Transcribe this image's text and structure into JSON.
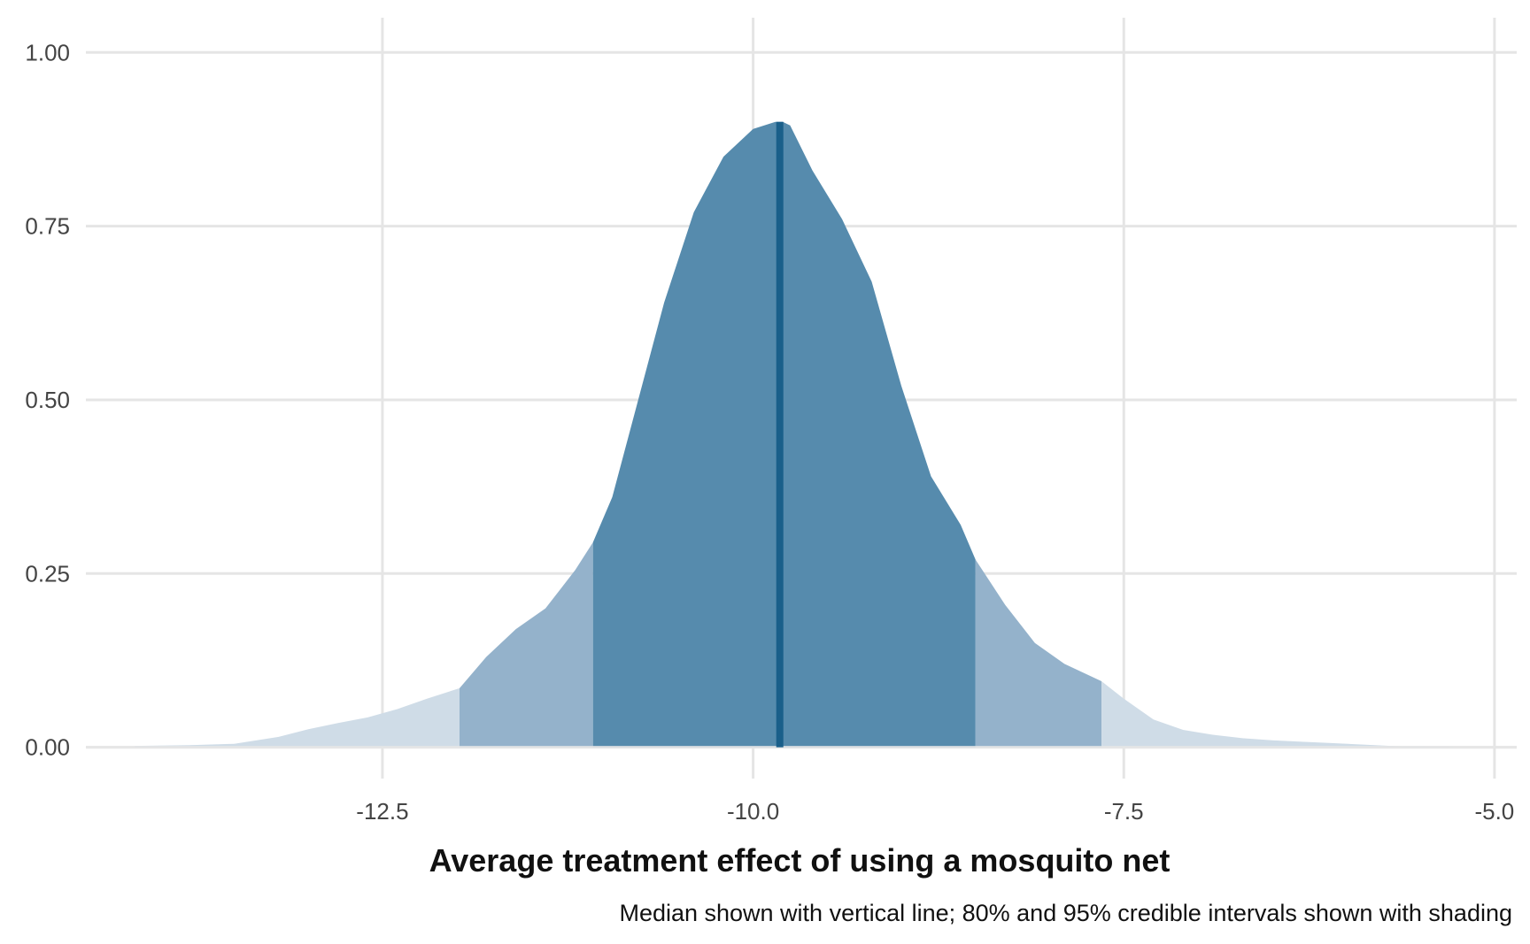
{
  "chart_data": {
    "type": "area",
    "xlabel": "Average treatment effect of using a mosquito net",
    "ylabel": "",
    "caption": "Median shown with vertical line; 80% and 95% credible intervals shown with shading",
    "xlim": [
      -14.5,
      -4.85
    ],
    "ylim": [
      -0.045,
      1.05
    ],
    "grid": true,
    "legend": "none",
    "x_ticks": [
      -12.5,
      -10.0,
      -7.5,
      -5.0
    ],
    "x_tick_labels": [
      "-12.5",
      "-10.0",
      "-7.5",
      "-5.0"
    ],
    "y_ticks": [
      0.0,
      0.25,
      0.5,
      0.75,
      1.0
    ],
    "y_tick_labels": [
      "0.00",
      "0.25",
      "0.50",
      "0.75",
      "1.00"
    ],
    "median": -9.82,
    "interval_80": [
      -11.08,
      -8.5
    ],
    "interval_95": [
      -11.98,
      -7.65
    ],
    "colors": {
      "outer": "#cfdce7",
      "ci95": "#94b2cb",
      "ci80": "#568bad",
      "median": "#1a5f8a",
      "grid": "#e5e5e5"
    },
    "density": {
      "x": [
        -14.17,
        -13.8,
        -13.5,
        -13.2,
        -13.0,
        -12.8,
        -12.6,
        -12.4,
        -12.2,
        -11.98,
        -11.8,
        -11.6,
        -11.4,
        -11.2,
        -11.08,
        -10.95,
        -10.8,
        -10.6,
        -10.4,
        -10.2,
        -10.0,
        -9.85,
        -9.8,
        -9.75,
        -9.6,
        -9.4,
        -9.2,
        -9.0,
        -8.8,
        -8.6,
        -8.5,
        -8.3,
        -8.1,
        -7.9,
        -7.65,
        -7.5,
        -7.3,
        -7.1,
        -6.9,
        -6.7,
        -6.5,
        -6.3,
        -6.1,
        -5.9,
        -5.7,
        -5.5,
        -5.2
      ],
      "y": [
        0.002,
        0.003,
        0.005,
        0.015,
        0.026,
        0.035,
        0.043,
        0.055,
        0.07,
        0.085,
        0.13,
        0.17,
        0.2,
        0.255,
        0.295,
        0.36,
        0.48,
        0.64,
        0.77,
        0.85,
        0.89,
        0.9,
        0.9,
        0.895,
        0.83,
        0.76,
        0.67,
        0.52,
        0.39,
        0.32,
        0.27,
        0.205,
        0.15,
        0.12,
        0.095,
        0.07,
        0.04,
        0.025,
        0.018,
        0.013,
        0.01,
        0.008,
        0.006,
        0.004,
        0.002,
        0.001,
        0.0
      ]
    }
  }
}
